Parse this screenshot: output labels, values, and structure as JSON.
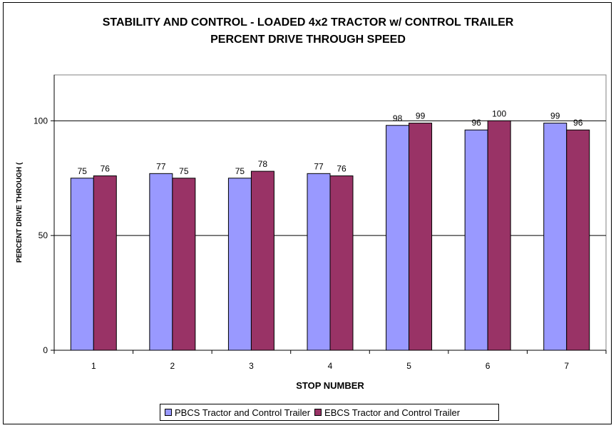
{
  "chart_data": {
    "type": "bar",
    "title": "STABILITY AND CONTROL - LOADED 4x2 TRACTOR w/ CONTROL TRAILER",
    "subtitle": "PERCENT DRIVE THROUGH SPEED",
    "xlabel": "STOP NUMBER",
    "ylabel": "PERCENT DRIVE THROUGH (",
    "categories": [
      "1",
      "2",
      "3",
      "4",
      "5",
      "6",
      "7"
    ],
    "yticks": [
      "0",
      "50",
      "100"
    ],
    "ylim": [
      0,
      120
    ],
    "grid": true,
    "legend_position": "bottom",
    "series": [
      {
        "name": "PBCS Tractor and Control Trailer",
        "color": "#9999ff",
        "values": [
          75,
          77,
          75,
          77,
          98,
          96,
          99
        ],
        "labels": [
          "75",
          "77",
          "75",
          "77",
          "98",
          "96",
          "99"
        ]
      },
      {
        "name": "EBCS Tractor and Control Trailer",
        "color": "#993366",
        "values": [
          76,
          75,
          78,
          76,
          99,
          100,
          96
        ],
        "labels": [
          "76",
          "75",
          "78",
          "76",
          "99",
          "100",
          "96"
        ]
      }
    ]
  }
}
